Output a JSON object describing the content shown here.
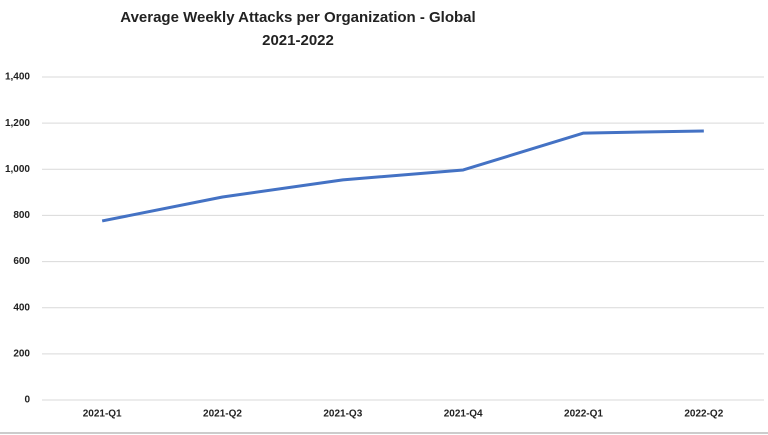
{
  "chart_data": {
    "type": "line",
    "title": "Average Weekly Attacks per Organization - Global",
    "subtitle": "2021-2022",
    "categories": [
      "2021-Q1",
      "2021-Q2",
      "2021-Q3",
      "2021-Q4",
      "2022-Q1",
      "2022-Q2"
    ],
    "series": [
      {
        "name": "Average Weekly Attacks",
        "color": "#4472c4",
        "values": [
          776,
          880,
          954,
          997,
          1157,
          1166
        ]
      }
    ],
    "ylim": [
      0,
      1400
    ],
    "yticks": [
      0,
      200,
      400,
      600,
      800,
      {
        "value": 1000,
        "label": "1,000"
      },
      {
        "value": 1200,
        "label": "1,200"
      },
      {
        "value": 1400,
        "label": "1,400"
      }
    ],
    "grid": true
  }
}
